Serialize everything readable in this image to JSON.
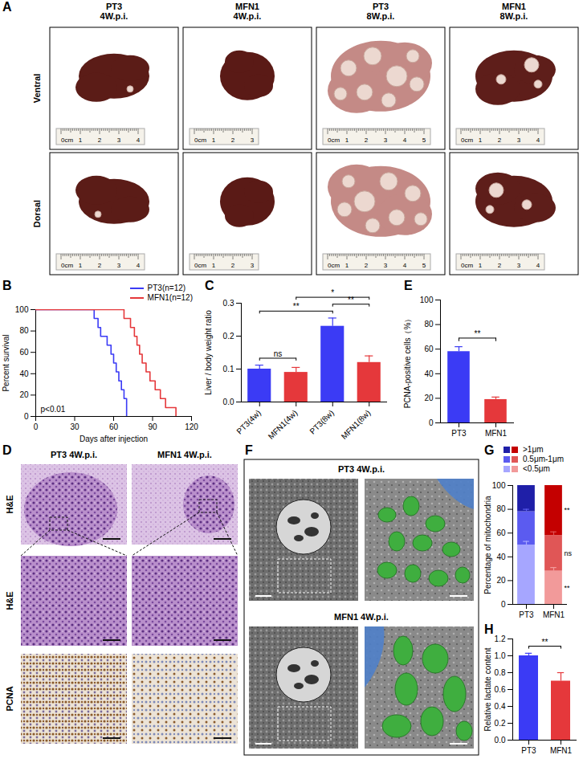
{
  "image_panels": {
    "A": {
      "panel": "A",
      "columns": [
        {
          "title": [
            "PT3",
            "4W.p.i."
          ],
          "ruler": [
            "0cm",
            "1",
            "2",
            "3",
            "4"
          ]
        },
        {
          "title": [
            "MFN1",
            "4W.p.i."
          ],
          "ruler": [
            "0cm",
            "1",
            "2",
            "3"
          ]
        },
        {
          "title": [
            "PT3",
            "8W.p.i."
          ],
          "ruler": [
            "0cm",
            "1",
            "2",
            "3",
            "4",
            "5"
          ]
        },
        {
          "title": [
            "MFN1",
            "8W.p.i."
          ],
          "ruler": [
            "0cm",
            "1",
            "2",
            "3",
            "4"
          ]
        }
      ],
      "rows": [
        "Ventral",
        "Dorsal"
      ]
    },
    "D": {
      "panel": "D",
      "columns": [
        "PT3 4W.p.i.",
        "MFN1 4W.p.i."
      ],
      "rows": [
        "H&E",
        "H&E",
        "PCNA"
      ]
    },
    "F": {
      "panel": "F",
      "rows": [
        "PT3 4W.p.i.",
        "MFN1 4W.p.i."
      ]
    }
  },
  "chart_data": [
    {
      "panel": "B",
      "type": "line",
      "line_style": "step",
      "xlabel": "Days after injection",
      "ylabel": "Percent survival",
      "xlim": [
        0,
        120
      ],
      "xticks": [
        0,
        30,
        60,
        90,
        120
      ],
      "ylim": [
        0,
        100
      ],
      "yticks": [
        0,
        20,
        40,
        60,
        80,
        100
      ],
      "annotations": [
        "p<0.01"
      ],
      "series": [
        {
          "name": "PT3(n=12)",
          "color": "#3b3bf5",
          "x": [
            0,
            45,
            48,
            50,
            55,
            58,
            60,
            62,
            64,
            66,
            68,
            70
          ],
          "values": [
            100,
            91.7,
            83.3,
            75,
            66.7,
            58.3,
            50,
            41.7,
            33.3,
            25,
            16.7,
            0
          ]
        },
        {
          "name": "MFN1(n=12)",
          "color": "#e5383b",
          "x": [
            0,
            68,
            73,
            76,
            78,
            80,
            82,
            85,
            88,
            92,
            96,
            100,
            108
          ],
          "values": [
            100,
            91.7,
            83.3,
            75,
            66.7,
            58.3,
            50,
            41.7,
            33.3,
            25,
            16.7,
            8.3,
            0
          ]
        }
      ]
    },
    {
      "panel": "C",
      "type": "bar",
      "ylabel": "Liver / body weight ratio",
      "categories": [
        "PT3(4w)",
        "MFN1(4w)",
        "PT3(8w)",
        "MFN1(8w)"
      ],
      "values": [
        0.1,
        0.09,
        0.23,
        0.12
      ],
      "errors": [
        0.012,
        0.015,
        0.025,
        0.02
      ],
      "colors": [
        "#3b3bf5",
        "#e5383b",
        "#3b3bf5",
        "#e5383b"
      ],
      "ylim": [
        0,
        0.3
      ],
      "yticks": [
        {
          "value": 0,
          "label": "0.0"
        },
        0.1,
        0.2,
        0.3
      ],
      "comparisons": [
        {
          "from": 0,
          "to": 1,
          "label": "ns"
        },
        {
          "from": 0,
          "to": 2,
          "label": "**"
        },
        {
          "from": 2,
          "to": 3,
          "label": "**"
        },
        {
          "from": 1,
          "to": 3,
          "label": "*"
        }
      ]
    },
    {
      "panel": "E",
      "type": "bar",
      "ylabel": "PCNA-positive cells（%）",
      "categories": [
        "PT3",
        "MFN1"
      ],
      "values": [
        58,
        19
      ],
      "errors": [
        4,
        2
      ],
      "colors": [
        "#3b3bf5",
        "#e5383b"
      ],
      "ylim": [
        0,
        100
      ],
      "yticks": [
        0,
        20,
        40,
        60,
        80,
        100
      ],
      "comparisons": [
        {
          "from": 0,
          "to": 1,
          "label": "**"
        }
      ]
    },
    {
      "panel": "G",
      "type": "bar",
      "stacked": true,
      "ylabel": "Percentage of mitochondria",
      "categories": [
        "PT3",
        "MFN1"
      ],
      "series": [
        {
          "name": "<0.5μm",
          "colors": [
            "#a6a6ff",
            "#f29a9a"
          ],
          "values": [
            50,
            28
          ],
          "errors": [
            3,
            3
          ]
        },
        {
          "name": "0.5μm-1μm",
          "colors": [
            "#5b5bf0",
            "#e05656"
          ],
          "values": [
            28,
            30
          ],
          "errors": [
            2,
            3
          ]
        },
        {
          "name": ">1μm",
          "colors": [
            "#1f1fa8",
            "#c40000"
          ],
          "values": [
            22,
            42
          ],
          "errors": [
            2,
            4
          ]
        }
      ],
      "ylim": [
        0,
        100
      ],
      "yticks": [
        0,
        20,
        40,
        60,
        80,
        100
      ],
      "annotations": [
        {
          "category": "MFN1",
          "series": ">1μm",
          "text": "**"
        },
        {
          "category": "MFN1",
          "series": "0.5μm-1μm",
          "text": "ns"
        },
        {
          "category": "MFN1",
          "series": "<0.5μm",
          "text": "**"
        }
      ]
    },
    {
      "panel": "H",
      "type": "bar",
      "ylabel": "Relative lactate content",
      "categories": [
        "PT3",
        "MFN1"
      ],
      "values": [
        1.0,
        0.7
      ],
      "errors": [
        0.03,
        0.1
      ],
      "colors": [
        "#3b3bf5",
        "#e5383b"
      ],
      "ylim": [
        0,
        1.2
      ],
      "yticks": [
        {
          "value": 0,
          "label": "0.0"
        },
        0.2,
        0.4,
        0.6,
        0.8,
        {
          "value": 1,
          "label": "1.0"
        },
        1.2
      ],
      "comparisons": [
        {
          "from": 0,
          "to": 1,
          "label": "**"
        }
      ]
    }
  ]
}
